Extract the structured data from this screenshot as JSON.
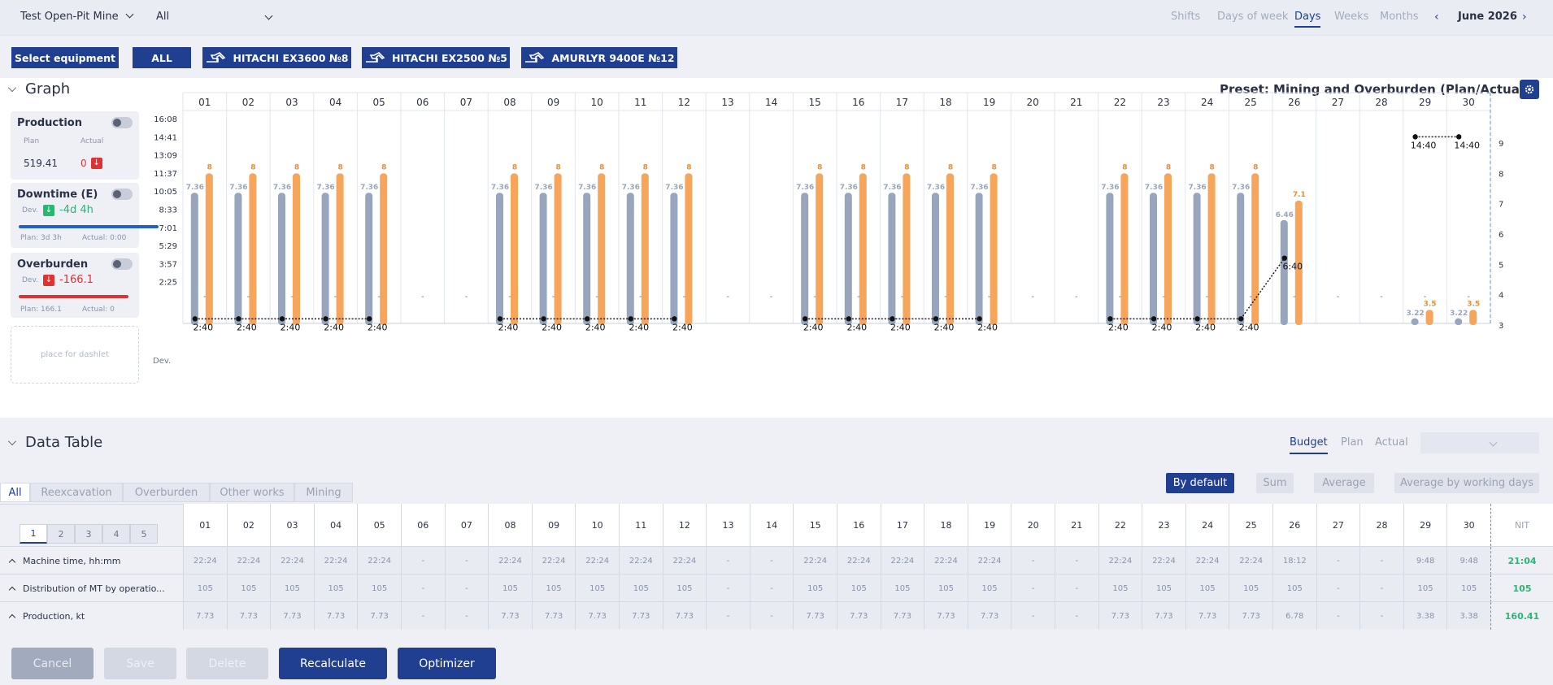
{
  "topbar": {
    "site": "Test Open-Pit Mine",
    "filter": "All",
    "periods": [
      "Shifts",
      "Days of week",
      "Days",
      "Weeks",
      "Months"
    ],
    "active_period": "Days",
    "month": "June 2026"
  },
  "equipment": {
    "select_label": "Select equipment",
    "all_label": "ALL",
    "items": [
      "HITACHI EX3600 №8",
      "HITACHI EX2500 №5",
      "AMURLYR 9400E №12"
    ]
  },
  "graph": {
    "title": "Graph",
    "preset": "Preset: Mining and Overburden (Plan/Actual)",
    "dashlet_placeholder": "place for dashlet",
    "dev_label": "Dev."
  },
  "cards": {
    "production": {
      "title": "Production",
      "plan_lbl": "Plan",
      "actual_lbl": "Actual",
      "plan": "519.41",
      "actual": "0"
    },
    "downtime": {
      "title": "Downtime (E)",
      "dev_lbl": "Dev.",
      "dev": "-4d 4h",
      "plan": "Plan: 3d 3h",
      "actual": "Actual: 0:00"
    },
    "overburden": {
      "title": "Overburden",
      "dev_lbl": "Dev.",
      "dev": "-166.1",
      "plan": "Plan: 166.1",
      "actual": "Actual: 0"
    }
  },
  "chart_data": {
    "type": "bar",
    "categories": [
      "01",
      "02",
      "03",
      "04",
      "05",
      "06",
      "07",
      "08",
      "09",
      "10",
      "11",
      "12",
      "13",
      "14",
      "15",
      "16",
      "17",
      "18",
      "19",
      "20",
      "21",
      "22",
      "23",
      "24",
      "25",
      "26",
      "27",
      "28",
      "29",
      "30"
    ],
    "y_left_ticks": [
      "16:08",
      "14:41",
      "13:09",
      "11:37",
      "10:05",
      "8:33",
      "7:01",
      "5:29",
      "3:57",
      "2:25"
    ],
    "y_right_ticks": [
      "9",
      "8",
      "7",
      "6",
      "5",
      "4",
      "3"
    ],
    "y_right_range": [
      3,
      9
    ],
    "series": [
      {
        "values": [
          7.36,
          7.36,
          7.36,
          7.36,
          7.36,
          null,
          null,
          7.36,
          7.36,
          7.36,
          7.36,
          7.36,
          null,
          null,
          7.36,
          7.36,
          7.36,
          7.36,
          7.36,
          null,
          null,
          7.36,
          7.36,
          7.36,
          7.36,
          6.46,
          null,
          null,
          3.22,
          3.22
        ],
        "color": "#98a6bd"
      },
      {
        "values": [
          8,
          8,
          8,
          8,
          8,
          null,
          null,
          8,
          8,
          8,
          8,
          8,
          null,
          null,
          8,
          8,
          8,
          8,
          8,
          null,
          null,
          8,
          8,
          8,
          8,
          7.1,
          null,
          null,
          3.5,
          3.5
        ],
        "color": "#f7a55a"
      }
    ],
    "line": {
      "values": [
        "2:40",
        "2:40",
        "2:40",
        "2:40",
        "2:40",
        null,
        null,
        "2:40",
        "2:40",
        "2:40",
        "2:40",
        "2:40",
        null,
        null,
        "2:40",
        "2:40",
        "2:40",
        "2:40",
        "2:40",
        null,
        null,
        "2:40",
        "2:40",
        "2:40",
        "2:40",
        "6:40",
        null,
        null,
        "14:40",
        "14:40"
      ]
    },
    "dev_values": [
      "-",
      "-",
      "-",
      "-",
      "-",
      "-",
      "-",
      "-",
      "-",
      "-",
      "-",
      "-",
      "-",
      "-",
      "-",
      "-",
      "-",
      "-",
      "-",
      "-",
      "-",
      "-",
      "-",
      "-",
      "-",
      "-",
      "-",
      "-",
      "-",
      "-"
    ]
  },
  "table": {
    "title": "Data Table",
    "modes": [
      "Budget",
      "Plan",
      "Actual"
    ],
    "active_mode": "Budget",
    "select_value": "",
    "tabs": [
      "All",
      "Reexcavation",
      "Overburden",
      "Other works",
      "Mining"
    ],
    "active_tab": "All",
    "pages": [
      "1",
      "2",
      "3",
      "4",
      "5"
    ],
    "active_page": "1",
    "agg_buttons": [
      "By default",
      "Sum",
      "Average",
      "Average by working days"
    ],
    "active_agg": "By default",
    "days": [
      "01",
      "02",
      "03",
      "04",
      "05",
      "06",
      "07",
      "08",
      "09",
      "10",
      "11",
      "12",
      "13",
      "14",
      "15",
      "16",
      "17",
      "18",
      "19",
      "20",
      "21",
      "22",
      "23",
      "24",
      "25",
      "26",
      "27",
      "28",
      "29",
      "30"
    ],
    "total_header": "NIT",
    "rows": [
      {
        "label": "Machine time, hh:mm",
        "values": [
          "22:24",
          "22:24",
          "22:24",
          "22:24",
          "22:24",
          "-",
          "-",
          "22:24",
          "22:24",
          "22:24",
          "22:24",
          "22:24",
          "-",
          "-",
          "22:24",
          "22:24",
          "22:24",
          "22:24",
          "22:24",
          "-",
          "-",
          "22:24",
          "22:24",
          "22:24",
          "22:24",
          "18:12",
          "-",
          "-",
          "9:48",
          "9:48"
        ],
        "total": "21:04"
      },
      {
        "label": "Distribution of MT by operatio...",
        "values": [
          "105",
          "105",
          "105",
          "105",
          "105",
          "-",
          "-",
          "105",
          "105",
          "105",
          "105",
          "105",
          "-",
          "-",
          "105",
          "105",
          "105",
          "105",
          "105",
          "-",
          "-",
          "105",
          "105",
          "105",
          "105",
          "105",
          "-",
          "-",
          "105",
          "105"
        ],
        "total": "105"
      },
      {
        "label": "Production, kt",
        "values": [
          "7.73",
          "7.73",
          "7.73",
          "7.73",
          "7.73",
          "-",
          "-",
          "7.73",
          "7.73",
          "7.73",
          "7.73",
          "7.73",
          "-",
          "-",
          "7.73",
          "7.73",
          "7.73",
          "7.73",
          "7.73",
          "-",
          "-",
          "7.73",
          "7.73",
          "7.73",
          "7.73",
          "6.78",
          "-",
          "-",
          "3.38",
          "3.38"
        ],
        "total": "160.41"
      }
    ]
  },
  "footer": {
    "cancel": "Cancel",
    "save": "Save",
    "delete": "Delete",
    "recalculate": "Recalculate",
    "optimizer": "Optimizer"
  }
}
